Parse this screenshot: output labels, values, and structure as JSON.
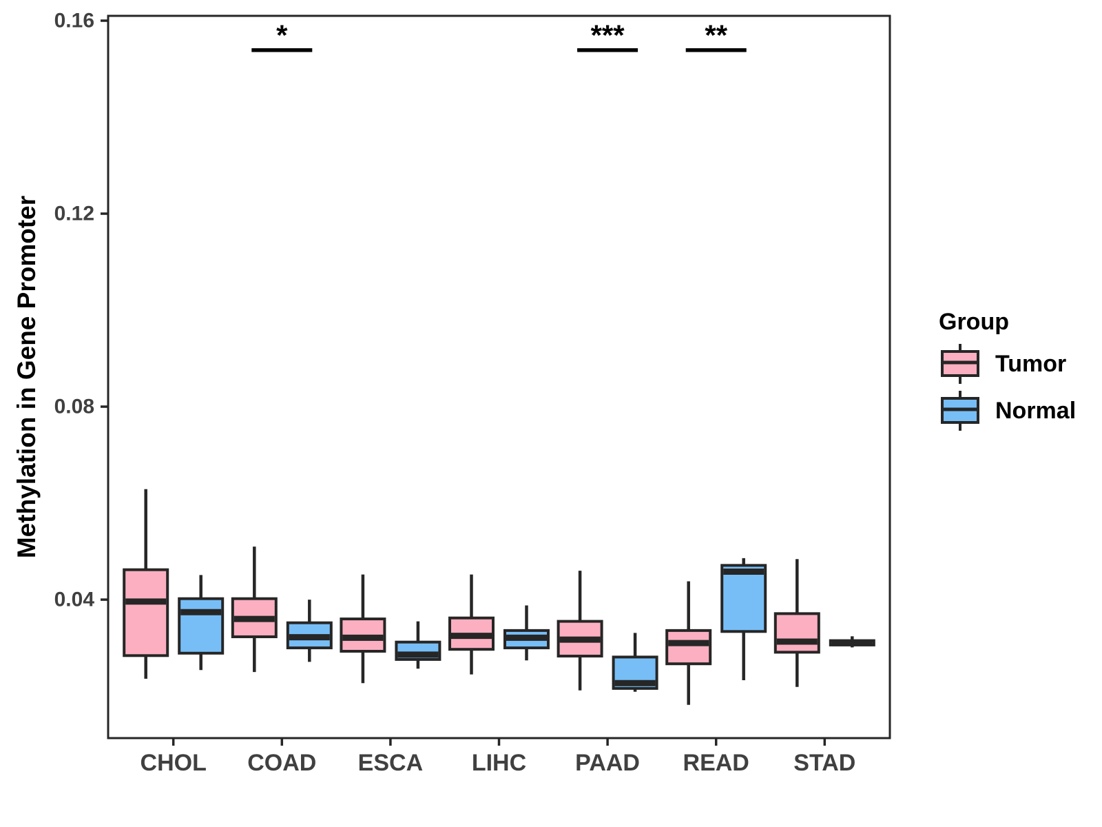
{
  "chart_data": {
    "type": "grouped_boxplot",
    "title": "",
    "xlabel": "",
    "ylabel": "Methylation in Gene Promoter",
    "categories": [
      "CHOL",
      "COAD",
      "ESCA",
      "LIHC",
      "PAAD",
      "READ",
      "STAD"
    ],
    "groups": [
      "Tumor",
      "Normal"
    ],
    "ylim": [
      0.0113,
      0.161
    ],
    "yticks": [
      {
        "value": 0.04,
        "label": "0.04"
      },
      {
        "value": 0.08,
        "label": "0.08"
      },
      {
        "value": 0.12,
        "label": "0.12"
      },
      {
        "value": 0.16,
        "label": "0.16"
      }
    ],
    "grid": false,
    "legend_position": "right",
    "legend": {
      "title": "Group",
      "items": [
        {
          "label": "Tumor",
          "color": "#FCAFC0"
        },
        {
          "label": "Normal",
          "color": "#77BEF7"
        }
      ]
    },
    "colors": {
      "tumor_fill": "#FCAFC0",
      "normal_fill": "#77BEF7",
      "box_border": "#262626",
      "frame": "#262626",
      "axis_text": "#404040",
      "annotation": "#000000"
    },
    "series": [
      {
        "name": "Tumor",
        "color": "#FCAFC0",
        "boxes": [
          {
            "category": "CHOL",
            "whisker_low": 0.0236,
            "q1": 0.0284,
            "median": 0.0396,
            "q3": 0.0462,
            "whisker_high": 0.0629
          },
          {
            "category": "COAD",
            "whisker_low": 0.025,
            "q1": 0.0323,
            "median": 0.036,
            "q3": 0.0402,
            "whisker_high": 0.051
          },
          {
            "category": "ESCA",
            "whisker_low": 0.0227,
            "q1": 0.0293,
            "median": 0.0321,
            "q3": 0.036,
            "whisker_high": 0.0452
          },
          {
            "category": "LIHC",
            "whisker_low": 0.0245,
            "q1": 0.0297,
            "median": 0.0325,
            "q3": 0.0362,
            "whisker_high": 0.0452
          },
          {
            "category": "PAAD",
            "whisker_low": 0.0212,
            "q1": 0.0283,
            "median": 0.0317,
            "q3": 0.0355,
            "whisker_high": 0.046
          },
          {
            "category": "READ",
            "whisker_low": 0.0182,
            "q1": 0.0267,
            "median": 0.031,
            "q3": 0.0336,
            "whisker_high": 0.0438
          },
          {
            "category": "STAD",
            "whisker_low": 0.0219,
            "q1": 0.0291,
            "median": 0.0313,
            "q3": 0.0371,
            "whisker_high": 0.0484
          }
        ]
      },
      {
        "name": "Normal",
        "color": "#77BEF7",
        "boxes": [
          {
            "category": "CHOL",
            "whisker_low": 0.0254,
            "q1": 0.0289,
            "median": 0.0374,
            "q3": 0.0402,
            "whisker_high": 0.0451
          },
          {
            "category": "COAD",
            "whisker_low": 0.0271,
            "q1": 0.03,
            "median": 0.0322,
            "q3": 0.0352,
            "whisker_high": 0.04
          },
          {
            "category": "ESCA",
            "whisker_low": 0.0257,
            "q1": 0.0276,
            "median": 0.0286,
            "q3": 0.0312,
            "whisker_high": 0.0355
          },
          {
            "category": "LIHC",
            "whisker_low": 0.0274,
            "q1": 0.03,
            "median": 0.0321,
            "q3": 0.0336,
            "whisker_high": 0.0388
          },
          {
            "category": "PAAD",
            "whisker_low": 0.0209,
            "q1": 0.0216,
            "median": 0.0227,
            "q3": 0.0281,
            "whisker_high": 0.0331
          },
          {
            "category": "READ",
            "whisker_low": 0.0233,
            "q1": 0.0334,
            "median": 0.0458,
            "q3": 0.0471,
            "whisker_high": 0.0486
          },
          {
            "category": "STAD",
            "whisker_low": 0.0301,
            "q1": 0.0306,
            "median": 0.031,
            "q3": 0.0315,
            "whisker_high": 0.0324
          }
        ]
      }
    ],
    "significance": [
      {
        "category": "COAD",
        "label": "*",
        "bar_y": 0.1539
      },
      {
        "category": "PAAD",
        "label": "***",
        "bar_y": 0.1539
      },
      {
        "category": "READ",
        "label": "**",
        "bar_y": 0.1539
      }
    ]
  }
}
